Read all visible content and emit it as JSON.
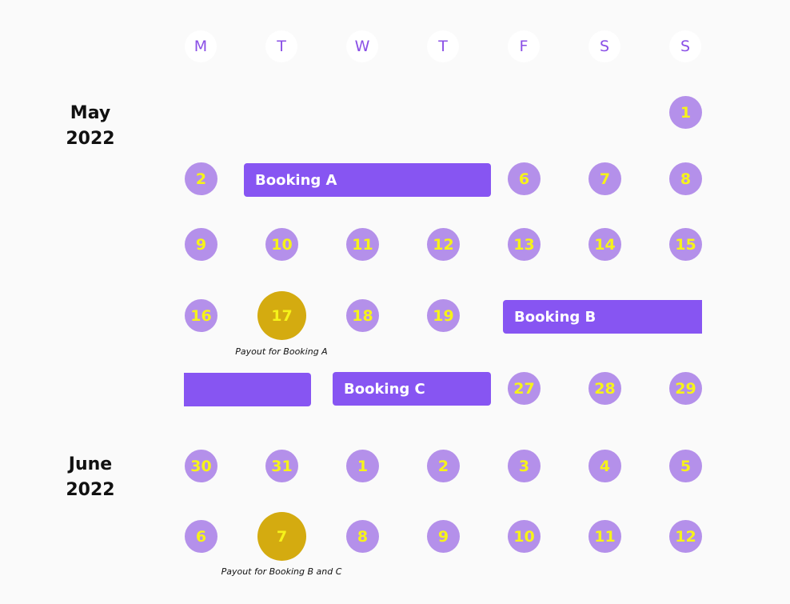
{
  "weekdays": [
    "M",
    "T",
    "W",
    "T",
    "F",
    "S",
    "S"
  ],
  "months": [
    {
      "name": "May",
      "year": "2022"
    },
    {
      "name": "June",
      "year": "2022"
    }
  ],
  "days": {
    "may_1": "1",
    "may_2": "2",
    "may_6": "6",
    "may_7": "7",
    "may_8": "8",
    "may_9": "9",
    "may_10": "10",
    "may_11": "11",
    "may_12": "12",
    "may_13": "13",
    "may_14": "14",
    "may_15": "15",
    "may_16": "16",
    "may_17": "17",
    "may_18": "18",
    "may_19": "19",
    "may_27": "27",
    "may_28": "28",
    "may_29": "29",
    "may_30": "30",
    "may_31": "31",
    "jun_1": "1",
    "jun_2": "2",
    "jun_3": "3",
    "jun_4": "4",
    "jun_5": "5",
    "jun_6": "6",
    "jun_7": "7",
    "jun_8": "8",
    "jun_9": "9",
    "jun_10": "10",
    "jun_11": "11",
    "jun_12": "12"
  },
  "bookings": {
    "a": "Booking A",
    "b": "Booking B",
    "c": "Booking C"
  },
  "payouts": {
    "a": "Payout for Booking A",
    "bc": "Payout for Booking B and C"
  },
  "colors": {
    "weekday_text": "#8a4fe6",
    "day_circle": "#b490ea",
    "day_text": "#f6f31a",
    "payout_circle": "#d4ab10",
    "booking_bar": "#8755f2"
  }
}
